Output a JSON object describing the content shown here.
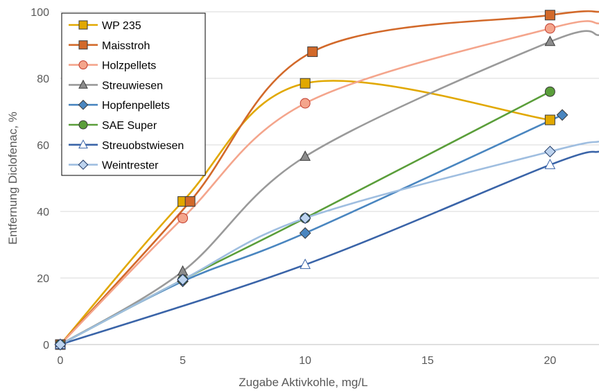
{
  "chart_data": {
    "type": "line",
    "xlabel": "Zugabe Aktivkohle, mg/L",
    "ylabel": "Entfernung Diclofenac, %",
    "xlim": [
      0,
      22
    ],
    "ylim": [
      0,
      100
    ],
    "xticks": [
      0,
      5,
      10,
      15,
      20
    ],
    "yticks": [
      0,
      20,
      40,
      60,
      80,
      100
    ],
    "grid": "horizontal",
    "legend_position": "top-left",
    "series": [
      {
        "name": "WP 235",
        "color": "#E1A800",
        "marker": "square",
        "marker_fill": "#E1A800",
        "points": [
          [
            0,
            0
          ],
          [
            5,
            43
          ],
          [
            10,
            78.5
          ],
          [
            20,
            67.5
          ]
        ]
      },
      {
        "name": "Maisstroh",
        "color": "#D2692A",
        "marker": "square",
        "marker_fill": "#D2692A",
        "points": [
          [
            0,
            0
          ],
          [
            5.3,
            43
          ],
          [
            10.3,
            88
          ],
          [
            20,
            99
          ],
          [
            22,
            100
          ]
        ]
      },
      {
        "name": "Holzpellets",
        "color": "#F4A58C",
        "marker": "circle",
        "marker_fill": "#F4A58C",
        "points": [
          [
            0,
            0
          ],
          [
            5,
            38
          ],
          [
            10,
            72.5
          ],
          [
            20,
            95
          ],
          [
            22,
            96.5
          ]
        ]
      },
      {
        "name": "Streuwiesen",
        "color": "#9A9A9A",
        "marker": "triangle",
        "marker_fill": "#8C8C8C",
        "points": [
          [
            0,
            0
          ],
          [
            5,
            22
          ],
          [
            10,
            56.5
          ],
          [
            20,
            91
          ],
          [
            22,
            93
          ]
        ]
      },
      {
        "name": "Hopfenpellets",
        "color": "#4A86C0",
        "marker": "diamond",
        "marker_fill": "#4A86C0",
        "points": [
          [
            0,
            0
          ],
          [
            5,
            19
          ],
          [
            10,
            33.5
          ],
          [
            20.5,
            69
          ]
        ]
      },
      {
        "name": "SAE Super",
        "color": "#5A9E3A",
        "marker": "circle",
        "marker_fill": "#5A9E3A",
        "points": [
          [
            0,
            0
          ],
          [
            5,
            19.5
          ],
          [
            10,
            38
          ],
          [
            20,
            76
          ]
        ]
      },
      {
        "name": "Streuobstwiesen",
        "color": "#3A64A8",
        "marker": "triangle-open",
        "marker_fill": "#ffffff",
        "points": [
          [
            0,
            0
          ],
          [
            10,
            24
          ],
          [
            20,
            54
          ],
          [
            22,
            58
          ]
        ]
      },
      {
        "name": "Weintrester",
        "color": "#9FBEE0",
        "marker": "diamond-open",
        "marker_fill": "#BDD3EE",
        "points": [
          [
            0,
            0
          ],
          [
            5,
            19.5
          ],
          [
            10,
            38
          ],
          [
            20,
            58
          ],
          [
            22,
            61
          ]
        ]
      }
    ]
  }
}
